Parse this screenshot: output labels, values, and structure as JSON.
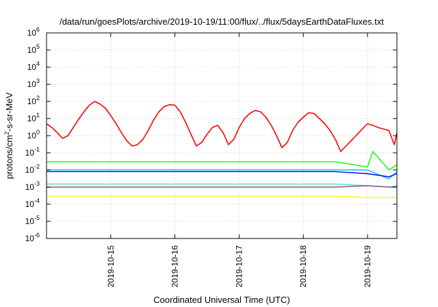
{
  "chart_data": {
    "type": "line",
    "title": "/data/run/goesPlots/archive/2019-10-19/11:00/flux/../flux/5daysEarthDataFluxes.txt",
    "xlabel": "Coordinated Universal Time (UTC)",
    "ylabel_parts": [
      "protons/cm",
      "2",
      "-s-sr-MeV"
    ],
    "yscale": "log",
    "ylim": [
      1e-06,
      1000000.0
    ],
    "xlim": [
      "2019-10-14T00:00",
      "2019-10-19T11:00"
    ],
    "grid": true,
    "legend": "none",
    "y_ticks": [
      {
        "base": "10",
        "exp": "-6",
        "value": 1e-06
      },
      {
        "base": "10",
        "exp": "-5",
        "value": 1e-05
      },
      {
        "base": "10",
        "exp": "-4",
        "value": 0.0001
      },
      {
        "base": "10",
        "exp": "-3",
        "value": 0.001
      },
      {
        "base": "10",
        "exp": "-2",
        "value": 0.01
      },
      {
        "base": "10",
        "exp": "-1",
        "value": 0.1
      },
      {
        "base": "10",
        "exp": "0",
        "value": 1
      },
      {
        "base": "10",
        "exp": "1",
        "value": 10
      },
      {
        "base": "10",
        "exp": "2",
        "value": 100
      },
      {
        "base": "10",
        "exp": "3",
        "value": 1000
      },
      {
        "base": "10",
        "exp": "4",
        "value": 10000
      },
      {
        "base": "10",
        "exp": "5",
        "value": 100000
      },
      {
        "base": "10",
        "exp": "6",
        "value": 1000000
      }
    ],
    "x_ticks": [
      "2019-10-15",
      "2019-10-16",
      "2019-10-17",
      "2019-10-18",
      "2019-10-19"
    ],
    "series": [
      {
        "color": "#ff0000",
        "x": [
          "2019-10-14T00:00",
          "2019-10-14T02:00",
          "2019-10-14T04:00",
          "2019-10-14T06:00",
          "2019-10-14T08:00",
          "2019-10-14T10:00",
          "2019-10-14T12:00",
          "2019-10-14T14:00",
          "2019-10-14T16:00",
          "2019-10-14T18:00",
          "2019-10-14T20:00",
          "2019-10-14T22:00",
          "2019-10-15T00:00",
          "2019-10-15T02:00",
          "2019-10-15T04:00",
          "2019-10-15T06:00",
          "2019-10-15T08:00",
          "2019-10-15T10:00",
          "2019-10-15T12:00",
          "2019-10-15T14:00",
          "2019-10-15T16:00",
          "2019-10-15T18:00",
          "2019-10-15T20:00",
          "2019-10-15T22:00",
          "2019-10-16T00:00",
          "2019-10-16T02:00",
          "2019-10-16T04:00",
          "2019-10-16T06:00",
          "2019-10-16T08:00",
          "2019-10-16T10:00",
          "2019-10-16T12:00",
          "2019-10-16T14:00",
          "2019-10-16T16:00",
          "2019-10-16T18:00",
          "2019-10-16T20:00",
          "2019-10-16T22:00",
          "2019-10-17T00:00",
          "2019-10-17T02:00",
          "2019-10-17T04:00",
          "2019-10-17T06:00",
          "2019-10-17T08:00",
          "2019-10-17T10:00",
          "2019-10-17T12:00",
          "2019-10-17T14:00",
          "2019-10-17T16:00",
          "2019-10-17T18:00",
          "2019-10-17T20:00",
          "2019-10-17T22:00",
          "2019-10-18T00:00",
          "2019-10-18T02:00",
          "2019-10-18T04:00",
          "2019-10-18T06:00",
          "2019-10-18T08:00",
          "2019-10-18T10:00",
          "2019-10-18T12:00",
          "2019-10-18T14:00",
          "2019-10-19T00:00",
          "2019-10-19T02:00",
          "2019-10-19T04:00",
          "2019-10-19T08:00",
          "2019-10-19T10:00",
          "2019-10-19T11:00"
        ],
        "y": [
          5,
          3,
          1.5,
          0.7,
          1,
          3,
          9,
          25,
          60,
          100,
          70,
          40,
          15,
          5,
          1.5,
          0.5,
          0.25,
          0.3,
          0.6,
          2,
          8,
          25,
          50,
          65,
          60,
          25,
          6,
          1.2,
          0.25,
          0.4,
          1.2,
          3,
          4,
          1.5,
          0.3,
          0.6,
          3,
          10,
          20,
          30,
          25,
          12,
          4,
          1,
          0.2,
          0.4,
          2,
          6,
          12,
          22,
          20,
          10,
          5,
          2,
          0.6,
          0.12,
          5,
          4,
          3,
          2,
          0.3,
          1.5
        ]
      },
      {
        "color": "#00ff00",
        "x": [
          "2019-10-14T00:00",
          "2019-10-18T12:00",
          "2019-10-19T00:00",
          "2019-10-19T02:00",
          "2019-10-19T08:00",
          "2019-10-19T11:00"
        ],
        "y": [
          0.03,
          0.03,
          0.015,
          0.12,
          0.01,
          0.02
        ]
      },
      {
        "color": "#00bfff",
        "x": [
          "2019-10-14T00:00",
          "2019-10-18T12:00",
          "2019-10-19T00:00",
          "2019-10-19T08:00",
          "2019-10-19T11:00"
        ],
        "y": [
          0.01,
          0.01,
          0.01,
          0.003,
          0.008
        ]
      },
      {
        "color": "#0000ff",
        "x": [
          "2019-10-14T00:00",
          "2019-10-18T12:00",
          "2019-10-19T00:00",
          "2019-10-19T08:00",
          "2019-10-19T11:00"
        ],
        "y": [
          0.008,
          0.008,
          0.006,
          0.004,
          0.006
        ]
      },
      {
        "color": "#40e0d0",
        "x": [
          "2019-10-14T00:00",
          "2019-10-18T12:00",
          "2019-10-19T00:00",
          "2019-10-19T08:00",
          "2019-10-19T11:00"
        ],
        "y": [
          0.0015,
          0.0015,
          0.0012,
          0.001,
          0.0012
        ]
      },
      {
        "color": "#9b4f78",
        "x": [
          "2019-10-14T00:00",
          "2019-10-18T12:00",
          "2019-10-19T00:00",
          "2019-10-19T08:00",
          "2019-10-19T11:00"
        ],
        "y": [
          0.001,
          0.001,
          0.0012,
          0.001,
          0.001
        ]
      },
      {
        "color": "#ffff00",
        "x": [
          "2019-10-14T00:00",
          "2019-10-18T12:00",
          "2019-10-19T00:00",
          "2019-10-19T08:00",
          "2019-10-19T11:00"
        ],
        "y": [
          0.0003,
          0.0003,
          0.00025,
          0.00025,
          0.00025
        ]
      }
    ]
  }
}
